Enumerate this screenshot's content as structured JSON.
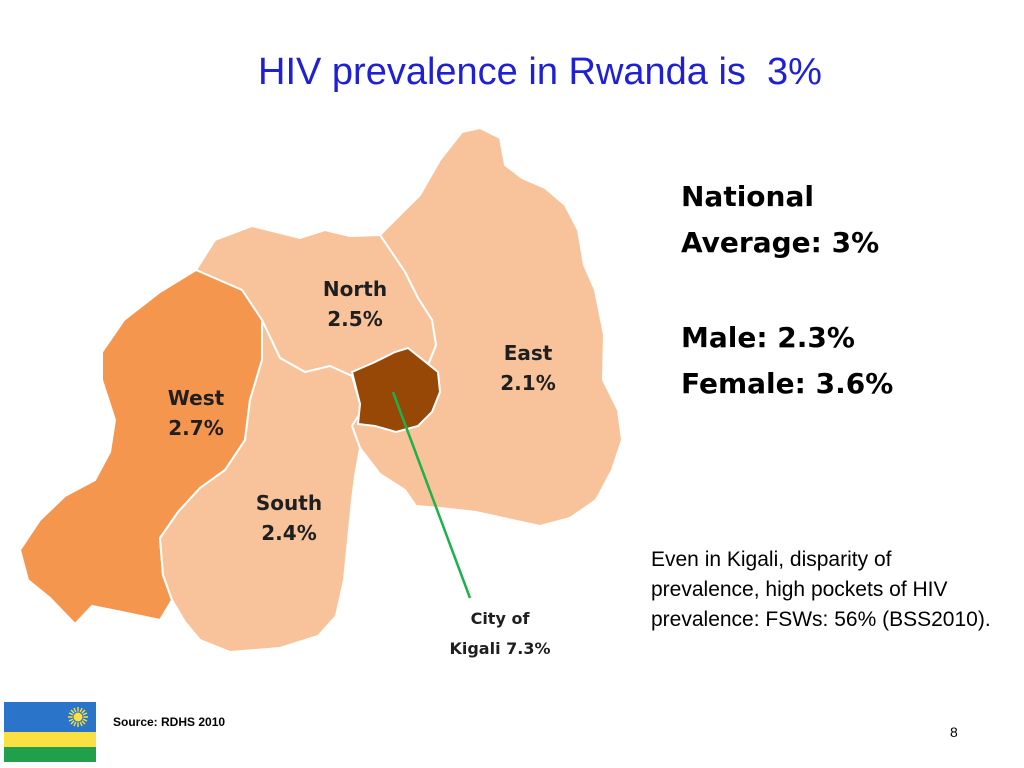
{
  "slide": {
    "title": "HIV prevalence in Rwanda is  3%",
    "page_number": "8"
  },
  "map": {
    "regions": {
      "north": {
        "name": "North",
        "value": "2.5%",
        "color": "#f8c39a"
      },
      "east": {
        "name": "East",
        "value": "2.1%",
        "color": "#f8c39a"
      },
      "west": {
        "name": "West",
        "value": "2.7%",
        "color": "#f5964f"
      },
      "south": {
        "name": "South",
        "value": "2.4%",
        "color": "#f8c39a"
      },
      "kigali": {
        "label_line1": "City of",
        "label_line2": "Kigali 7.3%",
        "color": "#974706"
      }
    },
    "pointer_color": "#1fb04b"
  },
  "stats": {
    "national_line1": "National",
    "national_line2": "Average: 3%",
    "male": "Male: 2.3%",
    "female": "Female: 3.6%"
  },
  "note": "Even in Kigali, disparity of prevalence, high pockets of HIV prevalence:  FSWs: 56% (BSS2010).",
  "source": "Source: RDHS 2010",
  "flag": {
    "colors": [
      "#2a75c9",
      "#fae042",
      "#20a04b"
    ],
    "icon": "sun-icon"
  }
}
